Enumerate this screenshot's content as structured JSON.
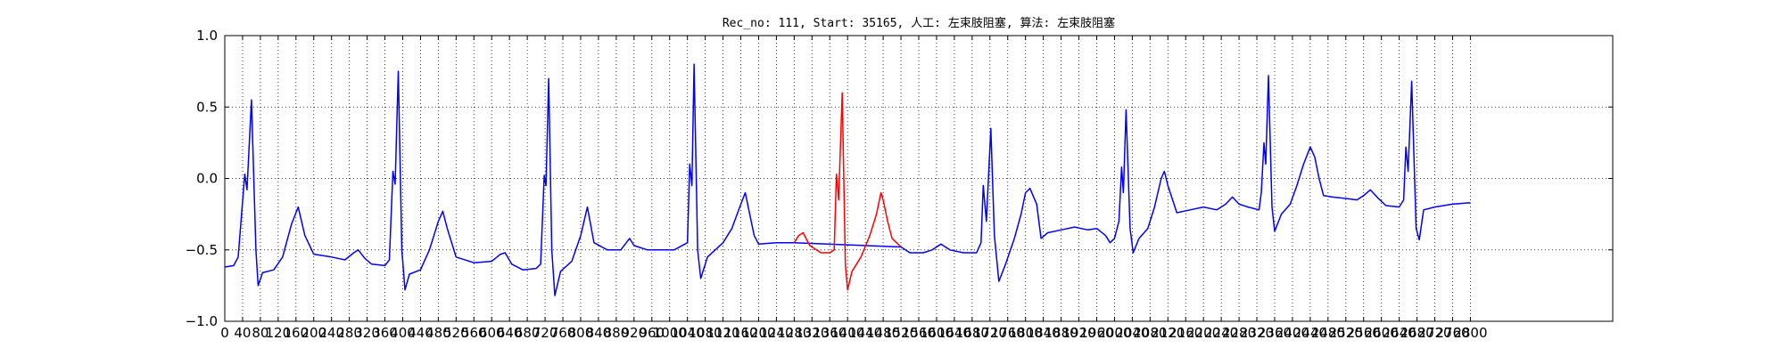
{
  "chart_data": {
    "type": "line",
    "title": "Rec_no: 111, Start: 35165, 人工: 左束肢阻塞, 算法: 左束肢阻塞",
    "xlabel": "",
    "ylabel": "",
    "xlim": [
      0,
      3120
    ],
    "ylim": [
      -1.0,
      1.0
    ],
    "yticks": [
      "1.0",
      "0.5",
      "0.0",
      "−0.5",
      "−1.0"
    ],
    "ytick_values": [
      1.0,
      0.5,
      0.0,
      -0.5,
      -1.0
    ],
    "xtick_step": 40,
    "xtick_labels": [
      "0",
      "40",
      "80",
      "120",
      "160",
      "200",
      "240",
      "280",
      "320",
      "360",
      "400",
      "440",
      "480",
      "520",
      "560",
      "600",
      "640",
      "680",
      "720",
      "760",
      "800",
      "840",
      "880",
      "920",
      "960",
      "1000",
      "1040",
      "1080",
      "1120",
      "1160",
      "1200",
      "1240",
      "1280",
      "1320",
      "1360",
      "1400",
      "1440",
      "1480",
      "1520",
      "1560",
      "1600",
      "1640",
      "1680",
      "1720",
      "1760",
      "1800",
      "1840",
      "1880",
      "1920",
      "1960",
      "2000",
      "2040",
      "2080",
      "2120",
      "2160",
      "2200",
      "2240",
      "2280",
      "2320",
      "2360",
      "2400",
      "2440",
      "2480",
      "2520",
      "2560",
      "2600",
      "2640",
      "2680",
      "2720",
      "2760",
      "2800"
    ],
    "grid": true,
    "grid_style": "dotted",
    "series": [
      {
        "color": "#0000ff",
        "segments": [
          [
            0,
            1280
          ],
          [
            1520,
            2800
          ]
        ],
        "keypoints": [
          [
            0,
            -0.62
          ],
          [
            20,
            -0.61
          ],
          [
            30,
            -0.55
          ],
          [
            45,
            0.03
          ],
          [
            50,
            -0.08
          ],
          [
            60,
            0.55
          ],
          [
            70,
            -0.5
          ],
          [
            75,
            -0.75
          ],
          [
            85,
            -0.66
          ],
          [
            110,
            -0.64
          ],
          [
            130,
            -0.55
          ],
          [
            150,
            -0.32
          ],
          [
            165,
            -0.2
          ],
          [
            180,
            -0.4
          ],
          [
            200,
            -0.53
          ],
          [
            240,
            -0.55
          ],
          [
            270,
            -0.57
          ],
          [
            290,
            -0.52
          ],
          [
            300,
            -0.5
          ],
          [
            315,
            -0.56
          ],
          [
            330,
            -0.6
          ],
          [
            360,
            -0.61
          ],
          [
            370,
            -0.57
          ],
          [
            378,
            0.05
          ],
          [
            383,
            -0.04
          ],
          [
            390,
            0.75
          ],
          [
            398,
            -0.5
          ],
          [
            405,
            -0.78
          ],
          [
            415,
            -0.67
          ],
          [
            440,
            -0.64
          ],
          [
            460,
            -0.5
          ],
          [
            480,
            -0.3
          ],
          [
            490,
            -0.23
          ],
          [
            500,
            -0.35
          ],
          [
            520,
            -0.55
          ],
          [
            560,
            -0.59
          ],
          [
            600,
            -0.58
          ],
          [
            620,
            -0.53
          ],
          [
            630,
            -0.52
          ],
          [
            645,
            -0.6
          ],
          [
            670,
            -0.64
          ],
          [
            700,
            -0.63
          ],
          [
            710,
            -0.6
          ],
          [
            718,
            0.02
          ],
          [
            722,
            -0.05
          ],
          [
            728,
            0.7
          ],
          [
            735,
            -0.5
          ],
          [
            742,
            -0.82
          ],
          [
            755,
            -0.65
          ],
          [
            780,
            -0.58
          ],
          [
            800,
            -0.4
          ],
          [
            815,
            -0.2
          ],
          [
            830,
            -0.45
          ],
          [
            860,
            -0.5
          ],
          [
            890,
            -0.5
          ],
          [
            910,
            -0.42
          ],
          [
            920,
            -0.47
          ],
          [
            950,
            -0.5
          ],
          [
            1010,
            -0.5
          ],
          [
            1040,
            -0.45
          ],
          [
            1045,
            0.1
          ],
          [
            1050,
            -0.05
          ],
          [
            1055,
            0.8
          ],
          [
            1063,
            -0.5
          ],
          [
            1070,
            -0.7
          ],
          [
            1085,
            -0.55
          ],
          [
            1120,
            -0.45
          ],
          [
            1140,
            -0.35
          ],
          [
            1160,
            -0.18
          ],
          [
            1170,
            -0.1
          ],
          [
            1180,
            -0.25
          ],
          [
            1190,
            -0.4
          ],
          [
            1200,
            -0.46
          ],
          [
            1240,
            -0.45
          ],
          [
            1280,
            -0.45
          ],
          [
            1520,
            -0.48
          ],
          [
            1540,
            -0.52
          ],
          [
            1570,
            -0.52
          ],
          [
            1590,
            -0.5
          ],
          [
            1610,
            -0.46
          ],
          [
            1630,
            -0.5
          ],
          [
            1660,
            -0.52
          ],
          [
            1690,
            -0.52
          ],
          [
            1700,
            -0.45
          ],
          [
            1705,
            -0.05
          ],
          [
            1712,
            -0.3
          ],
          [
            1722,
            0.35
          ],
          [
            1730,
            -0.4
          ],
          [
            1740,
            -0.72
          ],
          [
            1755,
            -0.6
          ],
          [
            1775,
            -0.42
          ],
          [
            1790,
            -0.25
          ],
          [
            1800,
            -0.1
          ],
          [
            1810,
            -0.07
          ],
          [
            1825,
            -0.18
          ],
          [
            1835,
            -0.42
          ],
          [
            1850,
            -0.38
          ],
          [
            1880,
            -0.36
          ],
          [
            1910,
            -0.34
          ],
          [
            1940,
            -0.36
          ],
          [
            1960,
            -0.35
          ],
          [
            1980,
            -0.4
          ],
          [
            1990,
            -0.45
          ],
          [
            2000,
            -0.42
          ],
          [
            2010,
            -0.3
          ],
          [
            2016,
            0.08
          ],
          [
            2020,
            -0.1
          ],
          [
            2026,
            0.48
          ],
          [
            2035,
            -0.35
          ],
          [
            2042,
            -0.52
          ],
          [
            2055,
            -0.42
          ],
          [
            2075,
            -0.35
          ],
          [
            2090,
            -0.2
          ],
          [
            2105,
            0.0
          ],
          [
            2112,
            0.05
          ],
          [
            2120,
            -0.05
          ],
          [
            2140,
            -0.24
          ],
          [
            2170,
            -0.22
          ],
          [
            2200,
            -0.2
          ],
          [
            2230,
            -0.22
          ],
          [
            2250,
            -0.18
          ],
          [
            2265,
            -0.13
          ],
          [
            2280,
            -0.18
          ],
          [
            2300,
            -0.2
          ],
          [
            2325,
            -0.22
          ],
          [
            2330,
            -0.1
          ],
          [
            2336,
            0.25
          ],
          [
            2340,
            0.1
          ],
          [
            2346,
            0.72
          ],
          [
            2354,
            -0.2
          ],
          [
            2360,
            -0.37
          ],
          [
            2375,
            -0.25
          ],
          [
            2395,
            -0.18
          ],
          [
            2410,
            -0.05
          ],
          [
            2425,
            0.1
          ],
          [
            2440,
            0.22
          ],
          [
            2450,
            0.15
          ],
          [
            2460,
            0.0
          ],
          [
            2470,
            -0.12
          ],
          [
            2490,
            -0.13
          ],
          [
            2520,
            -0.14
          ],
          [
            2545,
            -0.15
          ],
          [
            2560,
            -0.12
          ],
          [
            2575,
            -0.08
          ],
          [
            2590,
            -0.13
          ],
          [
            2610,
            -0.19
          ],
          [
            2640,
            -0.2
          ],
          [
            2650,
            -0.15
          ],
          [
            2655,
            0.22
          ],
          [
            2660,
            0.05
          ],
          [
            2668,
            0.68
          ],
          [
            2678,
            -0.35
          ],
          [
            2685,
            -0.43
          ],
          [
            2695,
            -0.22
          ],
          [
            2720,
            -0.2
          ],
          [
            2760,
            -0.18
          ],
          [
            2800,
            -0.17
          ]
        ]
      },
      {
        "color": "#ff0000",
        "segments": [
          [
            1280,
            1520
          ]
        ],
        "keypoints": [
          [
            1280,
            -0.45
          ],
          [
            1290,
            -0.4
          ],
          [
            1300,
            -0.38
          ],
          [
            1315,
            -0.47
          ],
          [
            1340,
            -0.52
          ],
          [
            1360,
            -0.52
          ],
          [
            1370,
            -0.5
          ],
          [
            1375,
            0.03
          ],
          [
            1380,
            -0.15
          ],
          [
            1388,
            0.6
          ],
          [
            1395,
            -0.6
          ],
          [
            1400,
            -0.78
          ],
          [
            1410,
            -0.65
          ],
          [
            1430,
            -0.55
          ],
          [
            1450,
            -0.4
          ],
          [
            1465,
            -0.25
          ],
          [
            1475,
            -0.1
          ],
          [
            1480,
            -0.15
          ],
          [
            1490,
            -0.3
          ],
          [
            1500,
            -0.42
          ],
          [
            1520,
            -0.48
          ]
        ]
      }
    ]
  }
}
